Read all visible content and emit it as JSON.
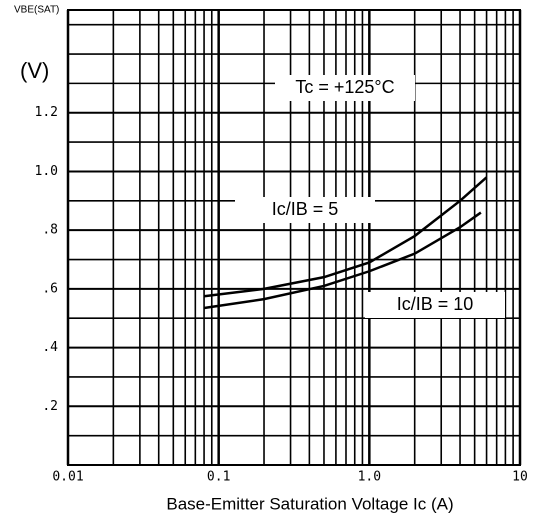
{
  "chart_data": {
    "type": "line",
    "xlog": true,
    "ylabel": "VBE(SAT)",
    "yunit": "(V)",
    "xlabel": "Base-Emitter Saturation Voltage Ic (A)",
    "annotations": [
      "Tc = +125°C",
      "Ic/IB = 5",
      "Ic/IB = 10"
    ],
    "xlim": [
      0.01,
      10
    ],
    "ylim": [
      0,
      1.55
    ],
    "xticks": [
      0.01,
      0.1,
      {
        "value": 1,
        "label": "1.0"
      },
      10
    ],
    "xminorticks": [
      0.02,
      0.03,
      0.04,
      0.05,
      0.06,
      0.07,
      0.08,
      0.09,
      0.2,
      0.3,
      0.4,
      0.5,
      0.6,
      0.7,
      0.8,
      0.9,
      2,
      3,
      4,
      5,
      6,
      7,
      8,
      9
    ],
    "yticks": [
      {
        "value": 0.2,
        "label": ".2"
      },
      {
        "value": 0.4,
        "label": ".4"
      },
      {
        "value": 0.6,
        "label": ".6"
      },
      {
        "value": 0.8,
        "label": ".8"
      },
      {
        "value": 1,
        "label": "1.0"
      },
      1.2
    ],
    "yminorticks": [
      0.1,
      0.3,
      0.5,
      0.7,
      0.9,
      1.1,
      1.3,
      1.4,
      1.5
    ],
    "grid": true,
    "series": [
      {
        "name": "Ic/IB = 5",
        "color": "#000000",
        "x": [
          0.08,
          0.2,
          0.5,
          1,
          2,
          4,
          6
        ],
        "values": [
          0.575,
          0.6,
          0.64,
          0.69,
          0.78,
          0.9,
          0.98
        ]
      },
      {
        "name": "Ic/IB = 10",
        "color": "#000000",
        "x": [
          0.08,
          0.2,
          0.5,
          1,
          2,
          4,
          5.5
        ],
        "values": [
          0.535,
          0.565,
          0.61,
          0.66,
          0.72,
          0.81,
          0.86
        ]
      }
    ]
  }
}
